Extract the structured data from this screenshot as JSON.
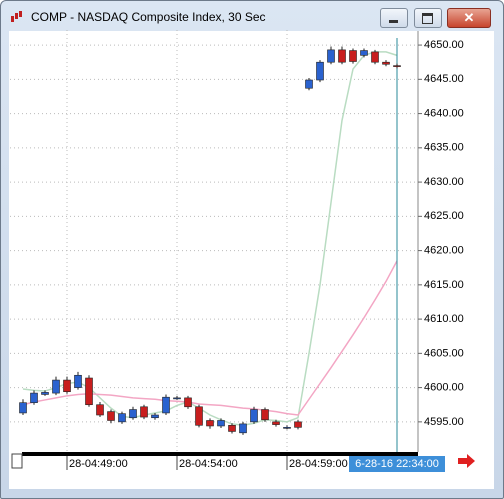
{
  "chart_data": {
    "type": "candlestick",
    "title": "COMP - NASDAQ Composite Index, 30 Sec",
    "categories": [
      null,
      null,
      null,
      null,
      "28-04:49:00",
      null,
      null,
      null,
      null,
      null,
      null,
      null,
      null,
      null,
      "28-04:54:00",
      null,
      null,
      null,
      null,
      null,
      null,
      null,
      null,
      null,
      "28-04:59:00",
      null,
      null,
      null,
      null,
      null,
      null,
      null,
      null,
      null,
      null
    ],
    "open": [
      4596.3,
      4597.8,
      4599.0,
      4599.2,
      4601.1,
      4600.0,
      4601.4,
      4597.5,
      4596.5,
      4595.0,
      4595.6,
      4597.2,
      4595.6,
      4596.3,
      4598.5,
      4598.5,
      4597.2,
      4595.2,
      4594.4,
      4594.5,
      4593.4,
      4595.0,
      4596.8,
      4595.0,
      4594.2,
      4595.0,
      4643.7,
      4644.9,
      4647.5,
      4649.3,
      4649.2,
      4648.5,
      4649.0,
      4647.5,
      4647.0
    ],
    "high": [
      4598.3,
      4599.6,
      4599.6,
      4601.6,
      4601.6,
      4602.3,
      4601.8,
      4597.9,
      4596.8,
      4596.5,
      4597.2,
      4597.5,
      4596.3,
      4599.0,
      4598.8,
      4598.8,
      4597.5,
      4595.5,
      4595.5,
      4594.8,
      4595.0,
      4597.2,
      4597.1,
      4595.3,
      4594.5,
      4595.3,
      4645.2,
      4647.8,
      4649.8,
      4649.8,
      4649.5,
      4649.5,
      4649.3,
      4647.8,
      4647.3
    ],
    "low": [
      4596.0,
      4597.5,
      4598.8,
      4598.9,
      4599.1,
      4599.7,
      4597.2,
      4595.7,
      4594.8,
      4594.7,
      4595.3,
      4595.4,
      4595.3,
      4596.0,
      4598.2,
      4596.9,
      4594.2,
      4594.0,
      4594.1,
      4593.3,
      4593.1,
      4594.7,
      4595.0,
      4594.3,
      4593.9,
      4593.9,
      4643.4,
      4644.6,
      4647.2,
      4647.2,
      4647.3,
      4648.2,
      4647.2,
      4646.9,
      4646.6
    ],
    "close": [
      4597.8,
      4599.2,
      4599.3,
      4601.1,
      4599.4,
      4601.8,
      4597.5,
      4596.0,
      4595.2,
      4596.2,
      4596.8,
      4595.7,
      4596.0,
      4598.6,
      4598.5,
      4597.2,
      4594.5,
      4594.4,
      4595.2,
      4593.6,
      4594.7,
      4596.8,
      4595.3,
      4594.6,
      4594.2,
      4594.2,
      4644.9,
      4647.5,
      4649.3,
      4647.5,
      4647.6,
      4649.2,
      4647.5,
      4647.2,
      4646.9
    ],
    "up_color": "#2a62cf",
    "down_color": "#c81e1e",
    "series": [
      {
        "color": "#b9dcc2",
        "values": [
          4599.8,
          4599.6,
          4599.5,
          4600.0,
          4600.6,
          4600.8,
          4600.0,
          4598.5,
          4597.0,
          4595.8,
          4595.6,
          4596.0,
          4596.3,
          4596.6,
          4597.4,
          4597.9,
          4597.0,
          4596.0,
          4595.3,
          4594.7,
          4594.5,
          4594.8,
          4595.3,
          4595.2,
          4595.0,
          4595.6,
          4605.0,
          4615.0,
          4627.0,
          4639.0,
          4646.5,
          4648.5,
          4649.0,
          4649.0,
          4648.5
        ]
      },
      {
        "color": "#f3a6c4",
        "values": [
          4597.5,
          4597.9,
          4598.2,
          4598.5,
          4598.8,
          4599.0,
          4599.1,
          4599.0,
          4598.9,
          4598.7,
          4598.5,
          4598.4,
          4598.3,
          4598.1,
          4598.0,
          4597.9,
          4597.6,
          4597.5,
          4597.4,
          4597.2,
          4597.0,
          4596.9,
          4596.7,
          4596.5,
          4596.2,
          4596.0,
          4598.3,
          4600.6,
          4602.9,
          4605.3,
          4607.7,
          4610.2,
          4612.8,
          4615.5,
          4618.5
        ]
      }
    ],
    "ylim": [
      4590.6,
      4652.2
    ],
    "yticks": [
      {
        "value": 4595,
        "label": "4595.00"
      },
      {
        "value": 4600,
        "label": "4600.00"
      },
      {
        "value": 4605,
        "label": "4605.00"
      },
      {
        "value": 4610,
        "label": "4610.00"
      },
      {
        "value": 4615,
        "label": "4615.00"
      },
      {
        "value": 4620,
        "label": "4620.00"
      },
      {
        "value": 4625,
        "label": "4625.00"
      },
      {
        "value": 4630,
        "label": "4630.00"
      },
      {
        "value": 4635,
        "label": "4635.00"
      },
      {
        "value": 4640,
        "label": "4640.00"
      },
      {
        "value": 4645,
        "label": "4645.00"
      },
      {
        "value": 4650,
        "label": "4650.00"
      }
    ],
    "grid": true,
    "cursor_label": "6-28-16 22:34:00"
  }
}
